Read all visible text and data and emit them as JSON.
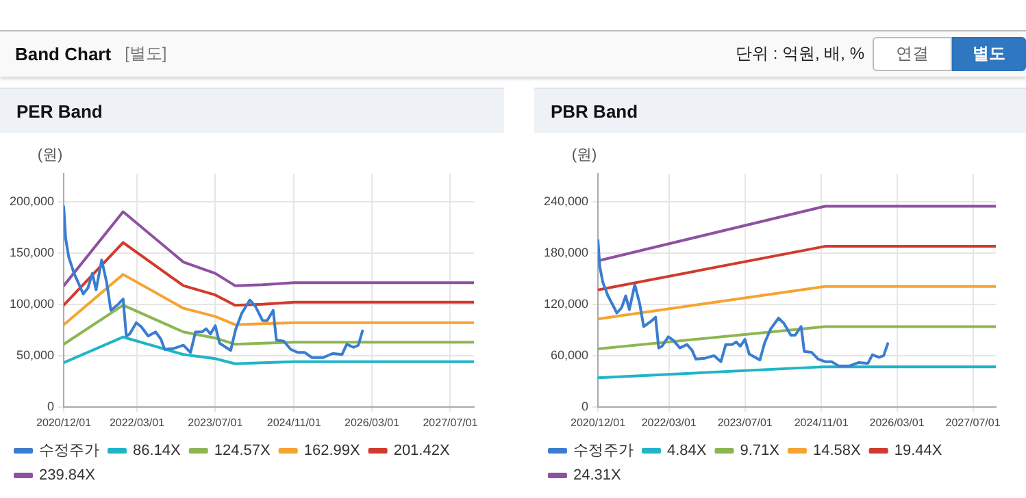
{
  "chart_data": [
    {
      "type": "line",
      "title": "PER Band",
      "ylabel": "(원)",
      "annotations": [
        "Band Chart",
        "[별도]",
        "단위 : 억원, 배, %",
        "연결",
        "별도"
      ],
      "legend": "bottom",
      "grid": true,
      "marker": "none",
      "line_style": "solid",
      "xlim": [
        "2020-12-01",
        "2027-11-25"
      ],
      "ylim": [
        0,
        227000
      ],
      "xticks": [
        {
          "value": "2020-12-01",
          "label": "2020/12/01"
        },
        {
          "value": "2022-03-01",
          "label": "2022/03/01"
        },
        {
          "value": "2023-07-01",
          "label": "2023/07/01"
        },
        {
          "value": "2024-11-01",
          "label": "2024/11/01"
        },
        {
          "value": "2026-03-01",
          "label": "2026/03/01"
        },
        {
          "value": "2027-07-01",
          "label": "2027/07/01"
        }
      ],
      "yticks": [
        {
          "value": 0,
          "label": "0"
        },
        {
          "value": 50000,
          "label": "50,000"
        },
        {
          "value": 100000,
          "label": "100,000"
        },
        {
          "value": 150000,
          "label": "150,000"
        },
        {
          "value": 200000,
          "label": "200,000"
        }
      ],
      "series": [
        {
          "name": "수정주가",
          "color": "#3a7dd0",
          "x": [
            "2020-12-01",
            "2020-12-13",
            "2021-01-01",
            "2021-02-03",
            "2021-03-01",
            "2021-04-01",
            "2021-05-01",
            "2021-05-28",
            "2021-06-20",
            "2021-07-25",
            "2021-08-25",
            "2021-09-20",
            "2021-11-05",
            "2021-12-05",
            "2021-12-25",
            "2022-01-15",
            "2022-02-25",
            "2022-03-28",
            "2022-05-10",
            "2022-06-25",
            "2022-07-28",
            "2022-08-20",
            "2022-10-18",
            "2022-12-15",
            "2023-01-28",
            "2023-02-28",
            "2023-04-10",
            "2023-05-06",
            "2023-06-01",
            "2023-07-01",
            "2023-07-28",
            "2023-09-15",
            "2023-10-05",
            "2023-11-04",
            "2023-12-12",
            "2024-02-01",
            "2024-03-06",
            "2024-04-20",
            "2024-05-18",
            "2024-06-25",
            "2024-07-15",
            "2024-08-30",
            "2024-10-12",
            "2024-11-25",
            "2025-01-06",
            "2025-02-20",
            "2025-05-01",
            "2025-06-30",
            "2025-08-27",
            "2025-09-25",
            "2025-11-06",
            "2025-12-06",
            "2026-01-01"
          ],
          "values": [
            195000,
            164000,
            146000,
            130000,
            121000,
            110000,
            116000,
            130000,
            114000,
            143000,
            121000,
            94000,
            100000,
            105000,
            69000,
            71000,
            82000,
            78000,
            69000,
            73000,
            66000,
            56000,
            57000,
            60000,
            53000,
            73000,
            73000,
            76000,
            71000,
            79000,
            62000,
            57000,
            55000,
            75000,
            91000,
            104000,
            98000,
            84000,
            84000,
            94000,
            65000,
            64000,
            56000,
            53000,
            53000,
            48000,
            48000,
            52000,
            51000,
            61000,
            58000,
            60000,
            74000
          ]
        },
        {
          "name": "86.14X",
          "color": "#1fb5c8",
          "x": [
            "2020-12-01",
            "2021-12-05",
            "2022-12-15",
            "2023-07-01",
            "2023-11-01",
            "2024-04-20",
            "2024-11-01",
            "2027-11-25"
          ],
          "values": [
            43000,
            68000,
            51000,
            47000,
            42000,
            43000,
            44000,
            44000
          ]
        },
        {
          "name": "124.57X",
          "color": "#8db652",
          "x": [
            "2020-12-01",
            "2021-12-05",
            "2022-12-15",
            "2023-07-01",
            "2023-11-01",
            "2024-04-20",
            "2024-11-01",
            "2027-11-25"
          ],
          "values": [
            61000,
            99000,
            73000,
            67000,
            61000,
            62000,
            63000,
            63000
          ]
        },
        {
          "name": "162.99X",
          "color": "#f5a431",
          "x": [
            "2020-12-01",
            "2021-12-05",
            "2022-12-15",
            "2023-07-01",
            "2023-11-01",
            "2024-04-20",
            "2024-11-01",
            "2027-11-25"
          ],
          "values": [
            80000,
            129000,
            96000,
            88000,
            80000,
            81000,
            82000,
            82000
          ]
        },
        {
          "name": "201.42X",
          "color": "#d23a2e",
          "x": [
            "2020-12-01",
            "2021-12-05",
            "2022-12-15",
            "2023-07-01",
            "2023-11-01",
            "2024-04-20",
            "2024-11-01",
            "2027-11-25"
          ],
          "values": [
            99000,
            160000,
            118000,
            109000,
            99000,
            100000,
            102000,
            102000
          ]
        },
        {
          "name": "239.84X",
          "color": "#8e51a0",
          "x": [
            "2020-12-01",
            "2021-12-05",
            "2022-12-15",
            "2023-07-01",
            "2023-11-01",
            "2024-04-20",
            "2024-11-01",
            "2027-11-25"
          ],
          "values": [
            118000,
            190000,
            141000,
            130000,
            118000,
            119000,
            121000,
            121000
          ]
        }
      ]
    },
    {
      "type": "line",
      "title": "PBR Band",
      "ylabel": "(원)",
      "legend": "bottom",
      "grid": true,
      "marker": "none",
      "line_style": "solid",
      "xlim": [
        "2020-12-01",
        "2027-11-25"
      ],
      "ylim": [
        0,
        273000
      ],
      "xticks": [
        {
          "value": "2020-12-01",
          "label": "2020/12/01"
        },
        {
          "value": "2022-03-01",
          "label": "2022/03/01"
        },
        {
          "value": "2023-07-01",
          "label": "2023/07/01"
        },
        {
          "value": "2024-11-01",
          "label": "2024/11/01"
        },
        {
          "value": "2026-03-01",
          "label": "2026/03/01"
        },
        {
          "value": "2027-07-01",
          "label": "2027/07/01"
        }
      ],
      "yticks": [
        {
          "value": 0,
          "label": "0"
        },
        {
          "value": 60000,
          "label": "60,000"
        },
        {
          "value": 120000,
          "label": "120,000"
        },
        {
          "value": 180000,
          "label": "180,000"
        },
        {
          "value": 240000,
          "label": "240,000"
        }
      ],
      "series": [
        {
          "name": "수정주가",
          "color": "#3a7dd0",
          "x": [
            "2020-12-01",
            "2020-12-13",
            "2021-01-01",
            "2021-02-03",
            "2021-03-01",
            "2021-04-01",
            "2021-05-01",
            "2021-05-28",
            "2021-06-20",
            "2021-07-25",
            "2021-08-25",
            "2021-09-20",
            "2021-11-05",
            "2021-12-05",
            "2021-12-25",
            "2022-01-15",
            "2022-02-25",
            "2022-03-28",
            "2022-05-10",
            "2022-06-25",
            "2022-07-28",
            "2022-08-20",
            "2022-10-18",
            "2022-12-15",
            "2023-01-28",
            "2023-02-28",
            "2023-04-10",
            "2023-05-06",
            "2023-06-01",
            "2023-07-01",
            "2023-07-28",
            "2023-09-15",
            "2023-10-05",
            "2023-11-04",
            "2023-12-12",
            "2024-02-01",
            "2024-03-06",
            "2024-04-20",
            "2024-05-18",
            "2024-06-25",
            "2024-07-15",
            "2024-08-30",
            "2024-10-12",
            "2024-11-25",
            "2025-01-06",
            "2025-02-20",
            "2025-05-01",
            "2025-06-30",
            "2025-08-27",
            "2025-09-25",
            "2025-11-06",
            "2025-12-06",
            "2026-01-01"
          ],
          "values": [
            195000,
            164000,
            146000,
            130000,
            121000,
            110000,
            116000,
            130000,
            114000,
            143000,
            121000,
            94000,
            100000,
            105000,
            69000,
            71000,
            82000,
            78000,
            69000,
            73000,
            66000,
            56000,
            57000,
            60000,
            53000,
            73000,
            73000,
            76000,
            71000,
            79000,
            62000,
            57000,
            55000,
            75000,
            91000,
            104000,
            98000,
            84000,
            84000,
            94000,
            65000,
            64000,
            56000,
            53000,
            53000,
            48000,
            48000,
            52000,
            51000,
            61000,
            58000,
            60000,
            74000
          ]
        },
        {
          "name": "4.84X",
          "color": "#1fb5c8",
          "x": [
            "2020-12-01",
            "2024-11-25",
            "2027-11-25"
          ],
          "values": [
            34000,
            47000,
            47000
          ]
        },
        {
          "name": "9.71X",
          "color": "#8db652",
          "x": [
            "2020-12-01",
            "2024-11-25",
            "2027-11-25"
          ],
          "values": [
            68000,
            94000,
            94000
          ]
        },
        {
          "name": "14.58X",
          "color": "#f5a431",
          "x": [
            "2020-12-01",
            "2024-11-25",
            "2027-11-25"
          ],
          "values": [
            103000,
            141000,
            141000
          ]
        },
        {
          "name": "19.44X",
          "color": "#d23a2e",
          "x": [
            "2020-12-01",
            "2024-11-25",
            "2027-11-25"
          ],
          "values": [
            137000,
            188000,
            188000
          ]
        },
        {
          "name": "24.31X",
          "color": "#8e51a0",
          "x": [
            "2020-12-01",
            "2024-11-25",
            "2027-11-25"
          ],
          "values": [
            171000,
            235000,
            235000
          ]
        }
      ]
    }
  ]
}
